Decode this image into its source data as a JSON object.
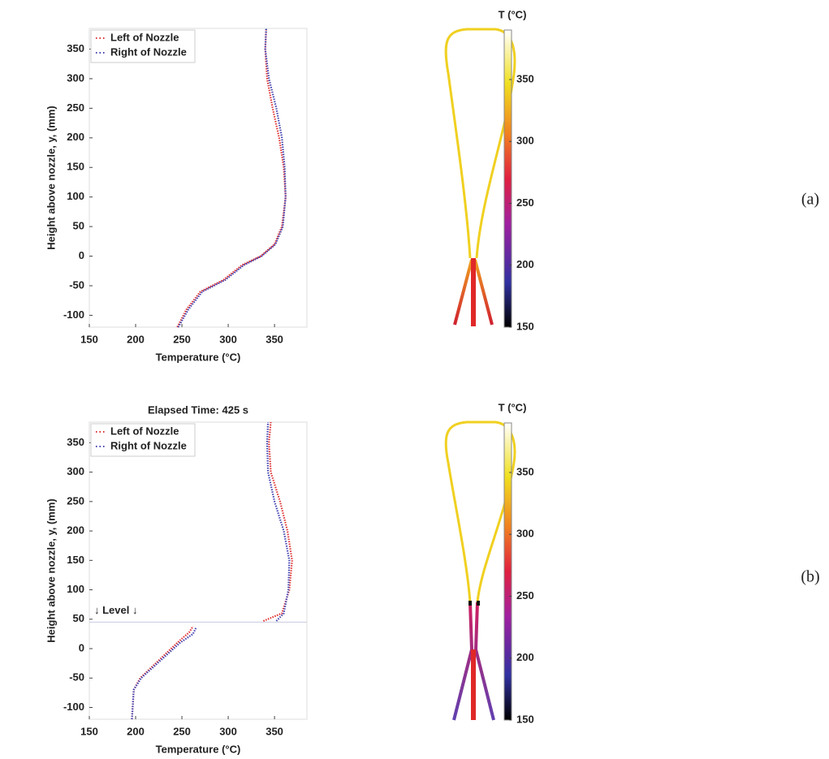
{
  "chart_data": [
    {
      "type": "line",
      "panel_label": "(a)",
      "xlabel": "Temperature (°C)",
      "ylabel": "Height above nozzle, y, (mm)",
      "xlim": [
        150,
        385
      ],
      "ylim": [
        -120,
        385
      ],
      "xticks": [
        150,
        200,
        250,
        300,
        350
      ],
      "yticks": [
        -100,
        -50,
        0,
        50,
        100,
        150,
        200,
        250,
        300,
        350
      ],
      "legend": "upper left",
      "series": [
        {
          "name": "Left of Nozzle",
          "color": "#e03030",
          "x": [
            245,
            255,
            270,
            295,
            315,
            335,
            350,
            358,
            362,
            360,
            355,
            348,
            342,
            340,
            341
          ],
          "values": [
            -120,
            -90,
            -60,
            -40,
            -15,
            0,
            20,
            50,
            100,
            150,
            200,
            250,
            300,
            350,
            385
          ]
        },
        {
          "name": "Right of Nozzle",
          "color": "#4040b0",
          "x": [
            246,
            257,
            272,
            297,
            317,
            336,
            351,
            359,
            362,
            361,
            358,
            352,
            344,
            340,
            341
          ],
          "values": [
            -120,
            -90,
            -60,
            -40,
            -15,
            0,
            20,
            50,
            100,
            150,
            200,
            250,
            300,
            350,
            385
          ]
        }
      ],
      "colorbar": {
        "label": "T (°C)",
        "lim": [
          150,
          390
        ],
        "ticks": [
          150,
          200,
          250,
          300,
          350
        ]
      }
    },
    {
      "type": "line",
      "panel_label": "(b)",
      "title": "Elapsed Time: 425 s",
      "xlabel": "Temperature (°C)",
      "ylabel": "Height above nozzle, y, (mm)",
      "xlim": [
        150,
        385
      ],
      "ylim": [
        -120,
        385
      ],
      "xticks": [
        150,
        200,
        250,
        300,
        350
      ],
      "yticks": [
        -100,
        -50,
        0,
        50,
        100,
        150,
        200,
        250,
        300,
        350
      ],
      "legend": "upper left",
      "annotation": {
        "text": "↓ Level ↓",
        "y": 45
      },
      "series": [
        {
          "name": "Left of Nozzle",
          "color": "#e03030",
          "x": [
            196,
            198,
            205,
            225,
            245,
            258,
            262,
            null,
            338,
            358,
            366,
            369,
            364,
            356,
            346,
            344,
            346
          ],
          "values": [
            -120,
            -70,
            -50,
            -20,
            10,
            28,
            38,
            null,
            47,
            60,
            100,
            150,
            200,
            250,
            300,
            350,
            385
          ]
        },
        {
          "name": "Right of Nozzle",
          "color": "#4040b0",
          "x": [
            196,
            198,
            206,
            227,
            248,
            262,
            265,
            null,
            352,
            360,
            365,
            366,
            360,
            350,
            343,
            342,
            343
          ],
          "values": [
            -120,
            -70,
            -50,
            -20,
            10,
            25,
            35,
            null,
            47,
            60,
            100,
            150,
            200,
            250,
            300,
            350,
            385
          ]
        }
      ],
      "colorbar": {
        "label": "T (°C)",
        "lim": [
          150,
          390
        ],
        "ticks": [
          150,
          200,
          250,
          300,
          350
        ]
      }
    }
  ]
}
